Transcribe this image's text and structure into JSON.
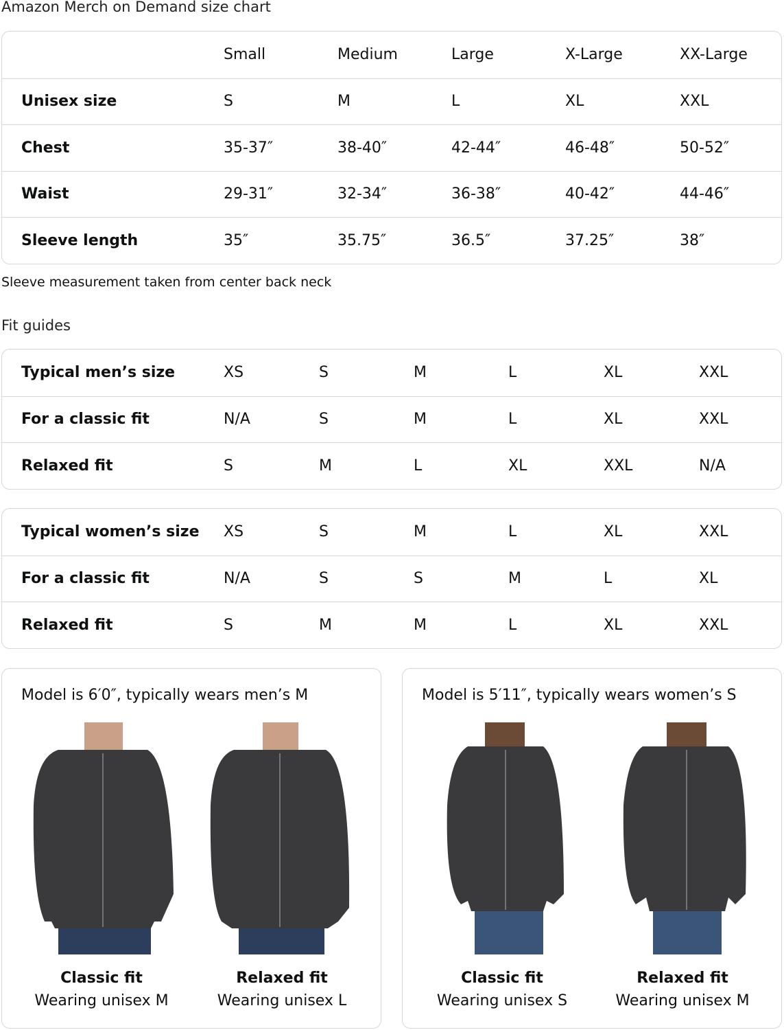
{
  "title": "Amazon Merch on Demand size chart",
  "size_chart": {
    "headers": [
      "",
      "Small",
      "Medium",
      "Large",
      "X-Large",
      "XX-Large"
    ],
    "rows": [
      {
        "label": "Unisex size",
        "values": [
          "S",
          "M",
          "L",
          "XL",
          "XXL"
        ]
      },
      {
        "label": "Chest",
        "values": [
          "35-37″",
          "38-40″",
          "42-44″",
          "46-48″",
          "50-52″"
        ]
      },
      {
        "label": "Waist",
        "values": [
          "29-31″",
          "32-34″",
          "36-38″",
          "40-42″",
          "44-46″"
        ]
      },
      {
        "label": "Sleeve length",
        "values": [
          "35″",
          "35.75″",
          "36.5″",
          "37.25″",
          "38″"
        ]
      }
    ]
  },
  "note": "Sleeve measurement taken from center back neck",
  "fit_guides_title": "Fit guides",
  "mens": [
    {
      "label": "Typical men’s size",
      "values": [
        "XS",
        "S",
        "M",
        "L",
        "XL",
        "XXL"
      ]
    },
    {
      "label": "For a classic fit",
      "values": [
        "N/A",
        "S",
        "M",
        "L",
        "XL",
        "XXL"
      ]
    },
    {
      "label": "Relaxed fit",
      "values": [
        "S",
        "M",
        "L",
        "XL",
        "XXL",
        "N/A"
      ]
    }
  ],
  "womens": [
    {
      "label": "Typical women’s size",
      "values": [
        "XS",
        "S",
        "M",
        "L",
        "XL",
        "XXL"
      ]
    },
    {
      "label": "For a classic fit",
      "values": [
        "N/A",
        "S",
        "S",
        "M",
        "L",
        "XL"
      ]
    },
    {
      "label": "Relaxed fit",
      "values": [
        "S",
        "M",
        "M",
        "L",
        "XL",
        "XXL"
      ]
    }
  ],
  "models": [
    {
      "title": "Model is 6′0″, typically wears men’s M",
      "fits": [
        {
          "name": "Classic fit",
          "wearing": "Wearing unisex M"
        },
        {
          "name": "Relaxed fit",
          "wearing": "Wearing unisex L"
        }
      ]
    },
    {
      "title": "Model is 5′11″, typically wears women’s S",
      "fits": [
        {
          "name": "Classic fit",
          "wearing": "Wearing unisex S"
        },
        {
          "name": "Relaxed fit",
          "wearing": "Wearing unisex M"
        }
      ]
    }
  ],
  "colors": {
    "border": "#d5d9d9",
    "hoodie": "#3a3a3c",
    "jeans": "#2c3e5c"
  }
}
